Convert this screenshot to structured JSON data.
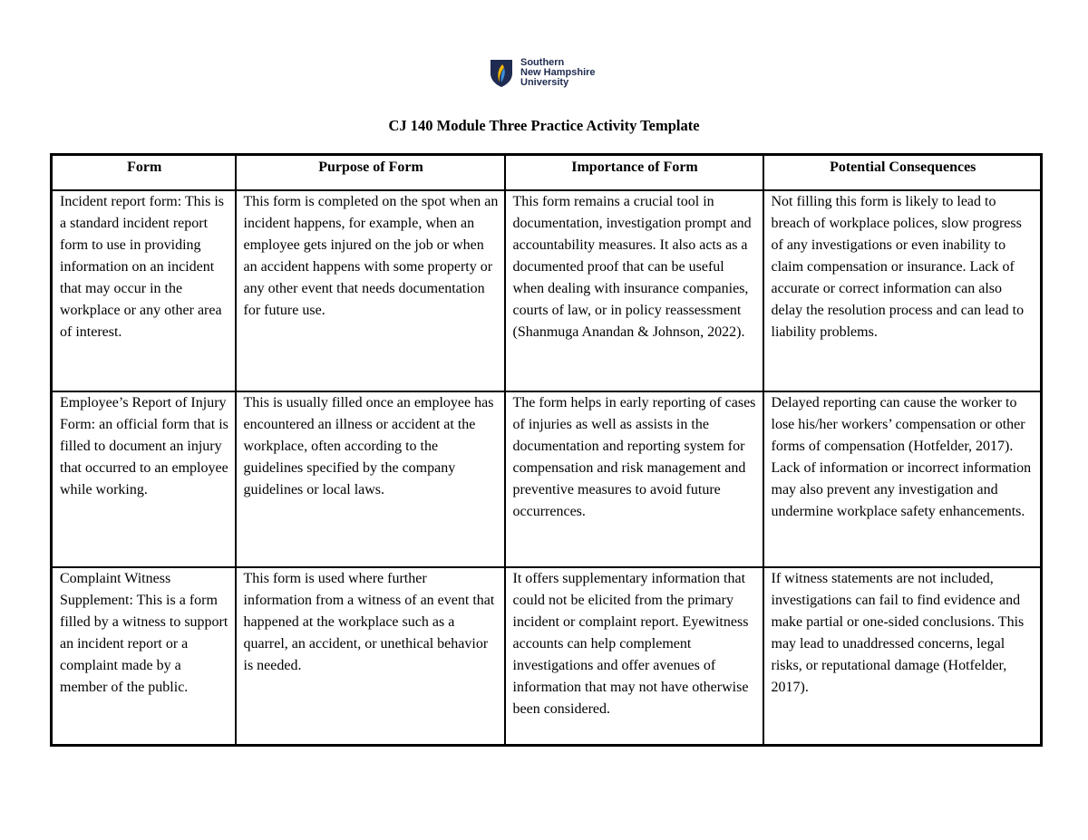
{
  "logo": {
    "lines": [
      "Southern",
      "New Hampshire",
      "University"
    ],
    "colors": {
      "shield": "#1f2b50",
      "flame_yellow": "#f5b800",
      "flame_blue": "#3d8fd8"
    }
  },
  "title": "CJ 140 Module Three Practice Activity Template",
  "table": {
    "headers": [
      "Form",
      "Purpose of Form",
      "Importance of Form",
      "Potential Consequences"
    ],
    "rows": [
      [
        "Incident report form: This is a standard incident report form to use in providing information on an incident that may occur in the workplace or any other area of interest.",
        "This form is completed on the spot when an incident happens, for example, when an employee gets injured on the job or when an accident happens with some property or any other event that needs documentation for future use.",
        "This form remains a crucial tool in documentation, investigation prompt and accountability measures. It also acts as a documented proof that can be useful when dealing with insurance companies, courts of law, or in policy reassessment (Shanmuga Anandan & Johnson, 2022).",
        "Not filling this form is likely to lead to breach of workplace polices, slow progress of any investigations or even inability to claim compensation or insurance. Lack of accurate or correct information can also delay the resolution process and can lead to liability problems."
      ],
      [
        "Employee’s Report of Injury Form: an official form that is filled to document an injury that occurred to an employee while working.",
        "This is usually filled once an employee has encountered an illness or accident at the workplace, often according to the guidelines specified by the company guidelines or local laws.",
        "The form helps in early reporting of cases of injuries as well as assists in the documentation and reporting system for compensation and risk management and preventive measures to avoid future occurrences.",
        "Delayed reporting can cause the worker to lose his/her workers’ compensation or other forms of compensation (Hotfelder, 2017). Lack of information or incorrect information may also prevent any investigation and undermine workplace safety enhancements."
      ],
      [
        "Complaint Witness Supplement: This is a form filled by a witness to support an incident report or a complaint made by a member of the public.",
        "This form is used where further information from a witness of an event that happened at the workplace such as a quarrel, an accident, or unethical behavior is needed.",
        "It offers supplementary information that could not be elicited from the primary incident or complaint report. Eyewitness accounts can help complement investigations and offer avenues of information that may not have otherwise been considered.",
        "If witness statements are not included, investigations can fail to find evidence and make partial or one-sided conclusions. This may lead to unaddressed concerns, legal risks, or reputational damage (Hotfelder, 2017)."
      ]
    ]
  }
}
